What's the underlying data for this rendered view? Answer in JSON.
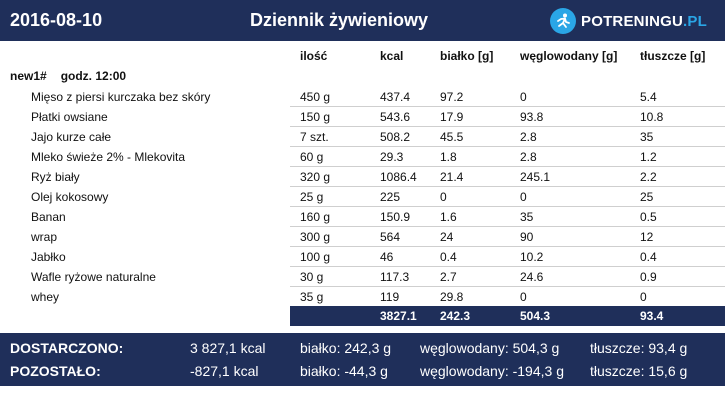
{
  "header": {
    "date": "2016-08-10",
    "title": "Dziennik żywieniowy",
    "logo_text": "POTRENINGU",
    "logo_suffix": ".PL",
    "logo_icon": "runner-icon"
  },
  "columns": {
    "qty": "ilość",
    "kcal": "kcal",
    "protein": "białko [g]",
    "carbs": "węglowodany [g]",
    "fat": "tłuszcze [g]"
  },
  "meal": {
    "name": "new1#",
    "time": "godz. 12:00"
  },
  "items": [
    {
      "name": "Mięso z piersi kurczaka bez skóry",
      "qty": "450 g",
      "kcal": "437.4",
      "protein": "97.2",
      "carbs": "0",
      "fat": "5.4"
    },
    {
      "name": "Płatki owsiane",
      "qty": "150 g",
      "kcal": "543.6",
      "protein": "17.9",
      "carbs": "93.8",
      "fat": "10.8"
    },
    {
      "name": "Jajo kurze całe",
      "qty": "7 szt.",
      "kcal": "508.2",
      "protein": "45.5",
      "carbs": "2.8",
      "fat": "35"
    },
    {
      "name": "Mleko świeże 2% - Mlekovita",
      "qty": "60 g",
      "kcal": "29.3",
      "protein": "1.8",
      "carbs": "2.8",
      "fat": "1.2"
    },
    {
      "name": "Ryż biały",
      "qty": "320 g",
      "kcal": "1086.4",
      "protein": "21.4",
      "carbs": "245.1",
      "fat": "2.2"
    },
    {
      "name": "Olej kokosowy",
      "qty": "25 g",
      "kcal": "225",
      "protein": "0",
      "carbs": "0",
      "fat": "25"
    },
    {
      "name": "Banan",
      "qty": "160 g",
      "kcal": "150.9",
      "protein": "1.6",
      "carbs": "35",
      "fat": "0.5"
    },
    {
      "name": "wrap",
      "qty": "300 g",
      "kcal": "564",
      "protein": "24",
      "carbs": "90",
      "fat": "12"
    },
    {
      "name": "Jabłko",
      "qty": "100 g",
      "kcal": "46",
      "protein": "0.4",
      "carbs": "10.2",
      "fat": "0.4"
    },
    {
      "name": "Wafle ryżowe naturalne",
      "qty": "30 g",
      "kcal": "117.3",
      "protein": "2.7",
      "carbs": "24.6",
      "fat": "0.9"
    },
    {
      "name": "whey",
      "qty": "35 g",
      "kcal": "119",
      "protein": "29.8",
      "carbs": "0",
      "fat": "0"
    }
  ],
  "totals": {
    "kcal": "3827.1",
    "protein": "242.3",
    "carbs": "504.3",
    "fat": "93.4"
  },
  "summary": {
    "delivered": {
      "label": "DOSTARCZONO:",
      "kcal": "3 827,1 kcal",
      "protein": "białko: 242,3 g",
      "carbs": "węglowodany: 504,3 g",
      "fat": "tłuszcze: 93,4 g"
    },
    "remaining": {
      "label": "POZOSTAŁO:",
      "kcal": "-827,1 kcal",
      "protein": "białko: -44,3 g",
      "carbs": "węglowodany: -194,3 g",
      "fat": "tłuszcze: 15,6 g"
    }
  },
  "colors": {
    "navy": "#1f2f5a",
    "accent": "#2aa6e6"
  }
}
